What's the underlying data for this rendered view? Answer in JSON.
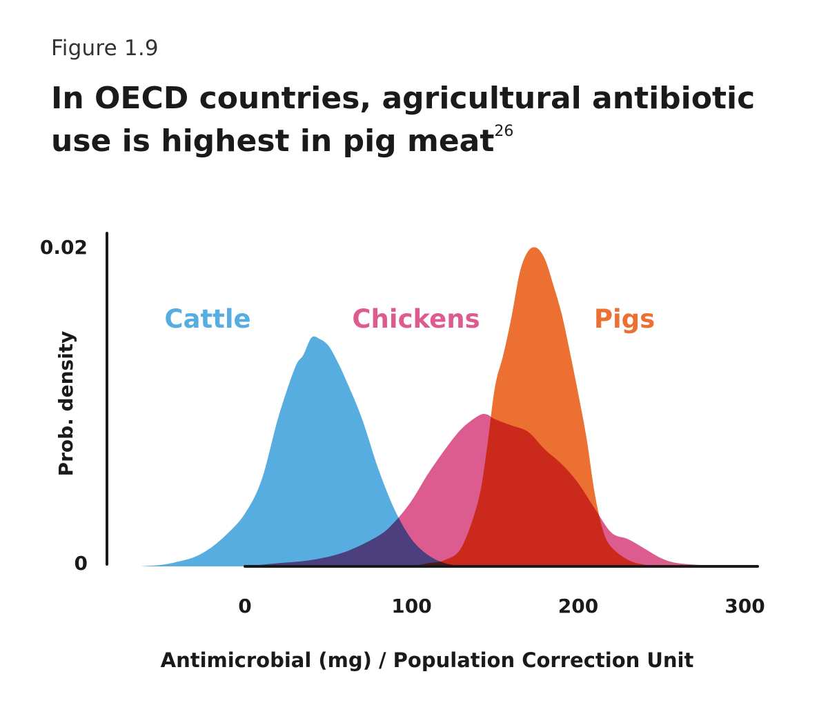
{
  "figure_label": "Figure 1.9",
  "title_main": "In OECD countries, agricultural antibiotic use is highest in pig meat",
  "title_superscript": "26",
  "chart_data": {
    "type": "area",
    "xlabel": "Antimicrobial (mg) / Population Correction Unit",
    "ylabel": "Prob. density",
    "xlim": [
      -63,
      310
    ],
    "ylim": [
      0,
      0.02
    ],
    "x_ticks": [
      "0",
      "100",
      "200",
      "300"
    ],
    "y_ticks": [
      "0",
      "0.02"
    ],
    "grid": false,
    "legend": "inline labels above curves",
    "series": [
      {
        "name": "Cattle",
        "color": "#58ADE0",
        "x": [
          -63,
          -50,
          -40,
          -30,
          -20,
          -10,
          0,
          10,
          20,
          30,
          35,
          40,
          45,
          50,
          55,
          60,
          70,
          80,
          90,
          100,
          110,
          120,
          130,
          140
        ],
        "y": [
          0,
          0.0001,
          0.0003,
          0.0006,
          0.0012,
          0.0021,
          0.0033,
          0.0054,
          0.0093,
          0.0124,
          0.0132,
          0.0143,
          0.0142,
          0.0138,
          0.0129,
          0.0118,
          0.0093,
          0.0061,
          0.0035,
          0.0017,
          0.0007,
          0.0002,
          5e-05,
          0
        ]
      },
      {
        "name": "Chickens",
        "color": "#DD5C90",
        "x": [
          0,
          20,
          40,
          60,
          80,
          90,
          100,
          110,
          120,
          130,
          140,
          145,
          150,
          160,
          170,
          180,
          190,
          200,
          210,
          220,
          230,
          240,
          250,
          260,
          280,
          300
        ],
        "y": [
          0,
          0.0002,
          0.0004,
          0.0009,
          0.0019,
          0.0028,
          0.0041,
          0.0058,
          0.0073,
          0.0086,
          0.0094,
          0.0095,
          0.0092,
          0.0088,
          0.0084,
          0.0073,
          0.0064,
          0.0052,
          0.0036,
          0.0021,
          0.0017,
          0.0011,
          0.0005,
          0.0002,
          5e-05,
          0
        ]
      },
      {
        "name": "Pigs",
        "color": "#EC7032",
        "x": [
          100,
          110,
          120,
          130,
          140,
          145,
          150,
          155,
          160,
          165,
          170,
          175,
          180,
          185,
          190,
          195,
          200,
          205,
          210,
          215,
          220,
          230,
          240,
          250
        ],
        "y": [
          0,
          0.0002,
          0.0004,
          0.0012,
          0.0041,
          0.0072,
          0.0112,
          0.0132,
          0.0156,
          0.0184,
          0.0197,
          0.0199,
          0.0192,
          0.0176,
          0.0158,
          0.0134,
          0.0108,
          0.008,
          0.0045,
          0.0022,
          0.0012,
          0.0004,
          0.0001,
          0
        ]
      }
    ]
  }
}
